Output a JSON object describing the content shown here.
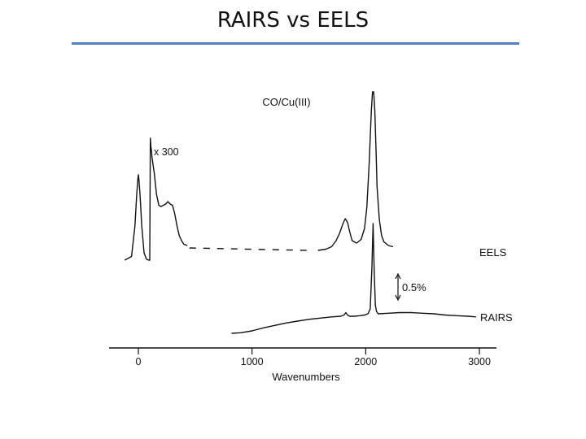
{
  "slide": {
    "title": "RAIRS vs EELS",
    "rule_color": "#4f81bd"
  },
  "chart_data": {
    "type": "line",
    "title": "CO/Cu(III)",
    "xlabel": "Wavenumbers",
    "ylabel": "",
    "xlim": [
      -250,
      3100
    ],
    "x_ticks": [
      0,
      1000,
      2000,
      3000
    ],
    "x_tick_labels": [
      "0",
      "1000",
      "2000",
      "3000"
    ],
    "annotations": {
      "scale_factor": "x 300",
      "scale_bar": "0.5%"
    },
    "series": [
      {
        "name": "EELS",
        "segments": [
          {
            "style": "solid",
            "x": [
              -120,
              -60,
              -30,
              -15,
              -5,
              0,
              5,
              15,
              30,
              50,
              70,
              90,
              100,
              105,
              110,
              115,
              120,
              140,
              160,
              180,
              200,
              220,
              240,
              260,
              280,
              300,
              320,
              340,
              360,
              380,
              400,
              430
            ],
            "y": [
              0.02,
              0.05,
              0.3,
              0.55,
              0.68,
              0.72,
              0.68,
              0.55,
              0.3,
              0.08,
              0.03,
              0.02,
              0.02,
              1.02,
              0.95,
              0.92,
              0.86,
              0.73,
              0.56,
              0.47,
              0.46,
              0.47,
              0.48,
              0.5,
              0.48,
              0.47,
              0.4,
              0.3,
              0.22,
              0.18,
              0.15,
              0.14
            ]
          },
          {
            "style": "dashed",
            "x": [
              450,
              1500
            ],
            "y": [
              0.12,
              0.1
            ]
          },
          {
            "style": "solid",
            "x": [
              1580,
              1650,
              1700,
              1740,
              1770,
              1800,
              1820,
              1840,
              1860,
              1880,
              1920,
              1960,
              1990,
              2010,
              2030,
              2050,
              2060,
              2070,
              2080,
              2090,
              2100,
              2120,
              2140,
              2160,
              2200,
              2240
            ],
            "y": [
              0.1,
              0.11,
              0.13,
              0.18,
              0.24,
              0.32,
              0.36,
              0.33,
              0.25,
              0.18,
              0.16,
              0.19,
              0.28,
              0.45,
              0.8,
              1.25,
              1.4,
              1.4,
              1.25,
              0.95,
              0.62,
              0.35,
              0.22,
              0.17,
              0.14,
              0.13
            ]
          }
        ]
      },
      {
        "name": "RAIRS",
        "segments": [
          {
            "style": "solid",
            "x": [
              820,
              900,
              1000,
              1100,
              1200,
              1300,
              1400,
              1500,
              1600,
              1700,
              1780,
              1810,
              1825,
              1840,
              1860,
              1900,
              1950,
              1990,
              2020,
              2040,
              2055,
              2065,
              2075,
              2085,
              2095,
              2110,
              2200,
              2300,
              2400,
              2500,
              2600,
              2700,
              2800,
              2900,
              2970
            ],
            "y": [
              0.0,
              0.005,
              0.02,
              0.045,
              0.065,
              0.085,
              0.1,
              0.115,
              0.125,
              0.135,
              0.14,
              0.15,
              0.17,
              0.15,
              0.14,
              0.14,
              0.145,
              0.15,
              0.16,
              0.2,
              0.55,
              0.9,
              0.5,
              0.23,
              0.18,
              0.16,
              0.165,
              0.17,
              0.17,
              0.165,
              0.16,
              0.15,
              0.145,
              0.14,
              0.135
            ]
          }
        ]
      }
    ]
  }
}
